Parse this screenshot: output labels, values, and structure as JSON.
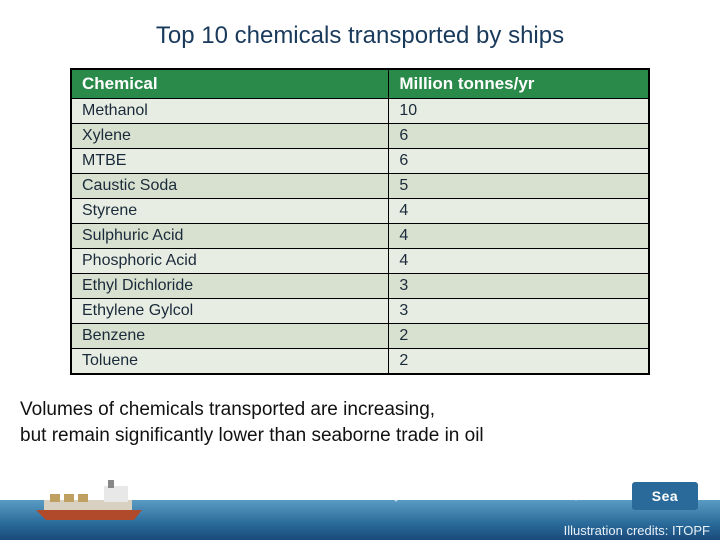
{
  "title": "Top 10 chemicals transported by ships",
  "table": {
    "columns": [
      "Chemical",
      "Million tonnes/yr"
    ],
    "rows": [
      [
        "Methanol",
        "10"
      ],
      [
        "Xylene",
        "6"
      ],
      [
        "MTBE",
        "6"
      ],
      [
        "Caustic Soda",
        "5"
      ],
      [
        "Styrene",
        "4"
      ],
      [
        "Sulphuric Acid",
        "4"
      ],
      [
        "Phosphoric Acid",
        "4"
      ],
      [
        "Ethyl Dichloride",
        "3"
      ],
      [
        "Ethylene Gylcol",
        "3"
      ],
      [
        "Benzene",
        "2"
      ],
      [
        "Toluene",
        "2"
      ]
    ],
    "header_bg": "#2a8a4a",
    "header_fg": "#ffffff",
    "row_odd_bg": "#e8ede3",
    "row_even_bg": "#d8e0d0",
    "border_color": "#000000",
    "font_size_header": 17,
    "font_size_cell": 16,
    "col_widths_pct": [
      55,
      45
    ]
  },
  "caption_line1": "Volumes of chemicals transported are increasing,",
  "caption_line2": "but remain significantly lower than seaborne trade in oil",
  "credits": "Illustration credits: ITOPF",
  "logo_text": "Sea",
  "colors": {
    "title": "#1a3a5c",
    "sea_top": "#5a9bc4",
    "sea_mid": "#2a6a9a",
    "sea_bot": "#1a4a7a",
    "ship_hull": "#b04a2a",
    "ship_deck": "#d8d0c0",
    "ship_bridge": "#e8e8e8"
  }
}
